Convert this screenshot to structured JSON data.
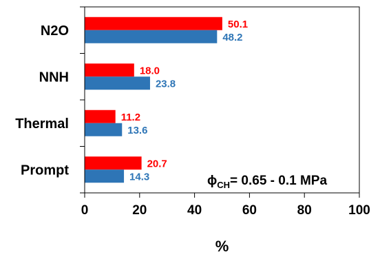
{
  "chart_data": {
    "type": "bar",
    "orientation": "horizontal",
    "categories": [
      "N2O",
      "NNH",
      "Thermal",
      "Prompt"
    ],
    "series": [
      {
        "values": [
          50.1,
          18.0,
          11.2,
          20.7
        ],
        "labels": [
          "50.1",
          "18.0",
          "11.2",
          "20.7"
        ],
        "color": "#ff0000"
      },
      {
        "values": [
          48.2,
          23.8,
          13.6,
          14.3
        ],
        "labels": [
          "48.2",
          "23.8",
          "13.6",
          "14.3"
        ],
        "color": "#2e75b6"
      }
    ],
    "xlabel": "%",
    "xlim": [
      0,
      100
    ],
    "xticks": [
      0,
      20,
      40,
      60,
      80,
      100
    ],
    "xtick_labels": [
      "0",
      "20",
      "40",
      "60",
      "80",
      "100"
    ],
    "annotation": {
      "phi_symbol": "ϕ",
      "phi_sub": "CH",
      "text": "= 0.65 - 0.1 MPa"
    },
    "grid": false,
    "legend": "none"
  }
}
